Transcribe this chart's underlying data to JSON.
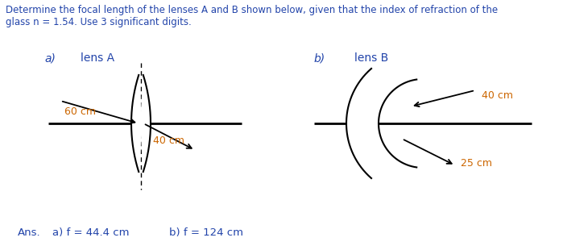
{
  "title_text": "Determine the focal length of the lenses A and B shown below, given that the index of refraction of the\nglass n = 1.54. Use 3 significant digits.",
  "label_a": "a)",
  "label_b": "b)",
  "lens_a_label": "lens A",
  "lens_b_label": "lens B",
  "dim_a1": "60 cm",
  "dim_a2": "40 cm",
  "dim_b1": "40 cm",
  "dim_b2": "25 cm",
  "ans_label": "Ans.",
  "ans_a": "a) f = 44.4 cm",
  "ans_b": "b) f = 124 cm",
  "bg_color": "#ffffff",
  "text_color": "#2244aa",
  "dim_color": "#cc6600",
  "line_color": "#000000",
  "axis_lw": 2.0,
  "lens_lw": 1.5
}
